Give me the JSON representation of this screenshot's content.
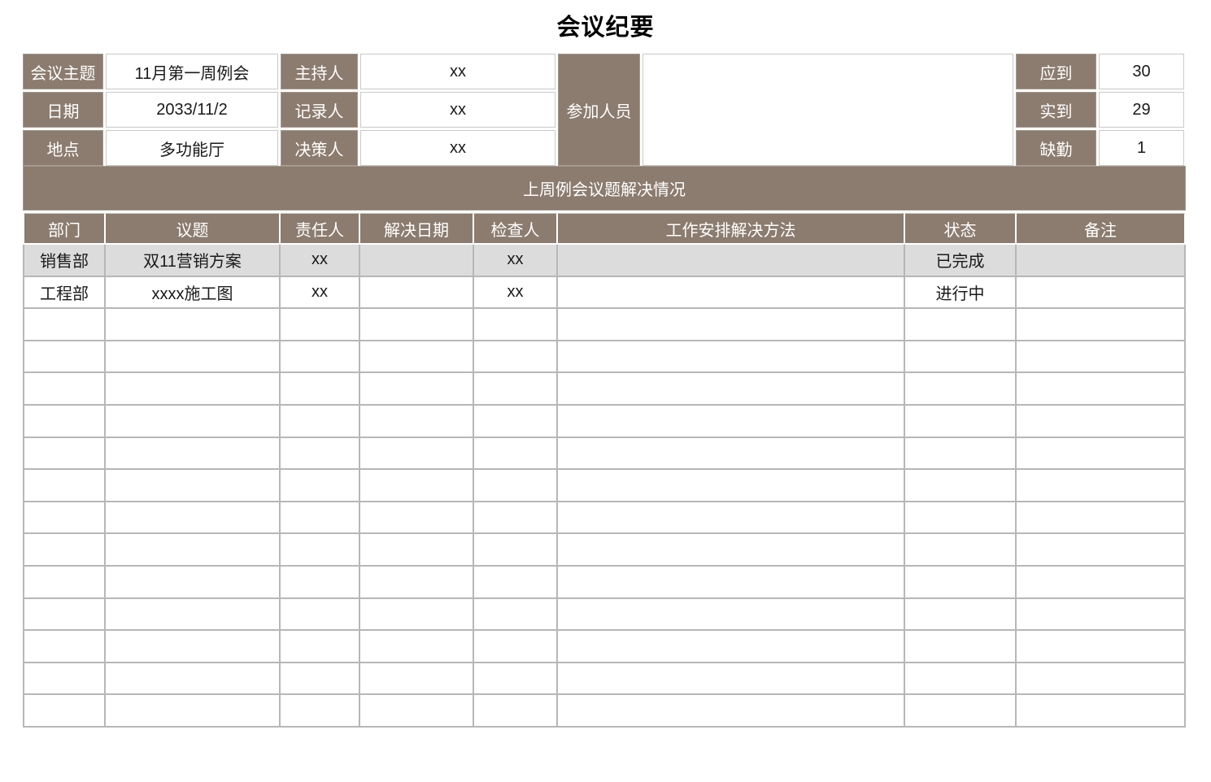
{
  "page_title": "会议纪要",
  "colors": {
    "header_brown": "#8b7c6f",
    "alt_row_gray": "#dcdcdc",
    "grid_line": "#b7b7b7",
    "header_text": "#ffffff"
  },
  "info_panel": {
    "rows": [
      {
        "label": "会议主题",
        "value": "11月第一周例会",
        "label2": "主持人",
        "value2": "xx",
        "stat_label": "应到",
        "stat_value": "30"
      },
      {
        "label": "日期",
        "value": "2033/11/2",
        "label2": "记录人",
        "value2": "xx",
        "stat_label": "实到",
        "stat_value": "29"
      },
      {
        "label": "地点",
        "value": "多功能厅",
        "label2": "决策人",
        "value2": "xx",
        "stat_label": "缺勤",
        "stat_value": "1"
      }
    ],
    "participants_label": "参加人员",
    "participants_value": ""
  },
  "section_banner": "上周例会议题解决情况",
  "issues_table": {
    "headers": [
      "部门",
      "议题",
      "责任人",
      "解决日期",
      "检查人",
      "工作安排解决方法",
      "状态",
      "备注"
    ],
    "rows": [
      [
        "销售部",
        "双11营销方案",
        "xx",
        "",
        "xx",
        "",
        "已完成",
        ""
      ],
      [
        "工程部",
        "xxxx施工图",
        "xx",
        "",
        "xx",
        "",
        "进行中",
        ""
      ]
    ],
    "empty_row_count": 13
  }
}
